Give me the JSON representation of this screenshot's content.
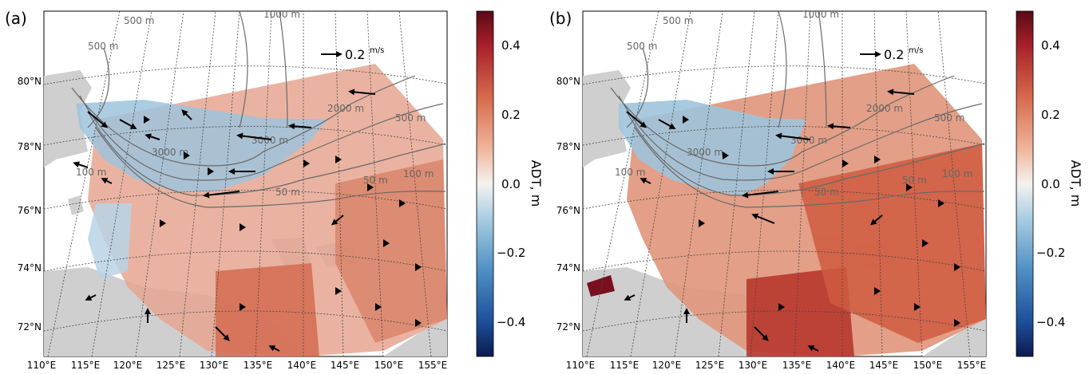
{
  "panels": [
    {
      "label": "(a)",
      "lat_labels": [
        "80°N",
        "78°N",
        "76°N",
        "74°N",
        "72°N"
      ],
      "lon_labels": [
        "110°E",
        "115°E",
        "120°E",
        "125°E",
        "130°E",
        "135°E",
        "140°E",
        "145°E",
        "150°E",
        "155°E"
      ],
      "contour_labels": [
        "500 m",
        "1000 m",
        "500 m",
        "2000 m",
        "3000 m",
        "3000 m",
        "500 m",
        "100 m",
        "50 m",
        "50 m",
        "100 m"
      ],
      "reference_vector": "0.2",
      "reference_unit": "m/s"
    },
    {
      "label": "(b)",
      "lat_labels": [
        "80°N",
        "78°N",
        "76°N",
        "74°N",
        "72°N"
      ],
      "lon_labels": [
        "110°E",
        "115°E",
        "120°E",
        "125°E",
        "130°E",
        "135°E",
        "140°E",
        "145°E",
        "150°E",
        "155°E"
      ],
      "contour_labels": [
        "500 m",
        "1000 m",
        "500 m",
        "2000 m",
        "3000 m",
        "3000 m",
        "500 m",
        "100 m",
        "50 m",
        "50 m",
        "100 m"
      ],
      "reference_vector": "0.2",
      "reference_unit": "m/s"
    }
  ],
  "colorbar": {
    "label": "ADT, m",
    "ticks": [
      "0.4",
      "0.2",
      "0.0",
      "−0.2",
      "−0.4"
    ],
    "range": [
      -0.5,
      0.5
    ],
    "colormap": "RdBu_r"
  },
  "colors": {
    "land": "#c8c8c8",
    "positive": "#d36c4f",
    "negative": "#6aa6c8",
    "contour": "#555555"
  }
}
